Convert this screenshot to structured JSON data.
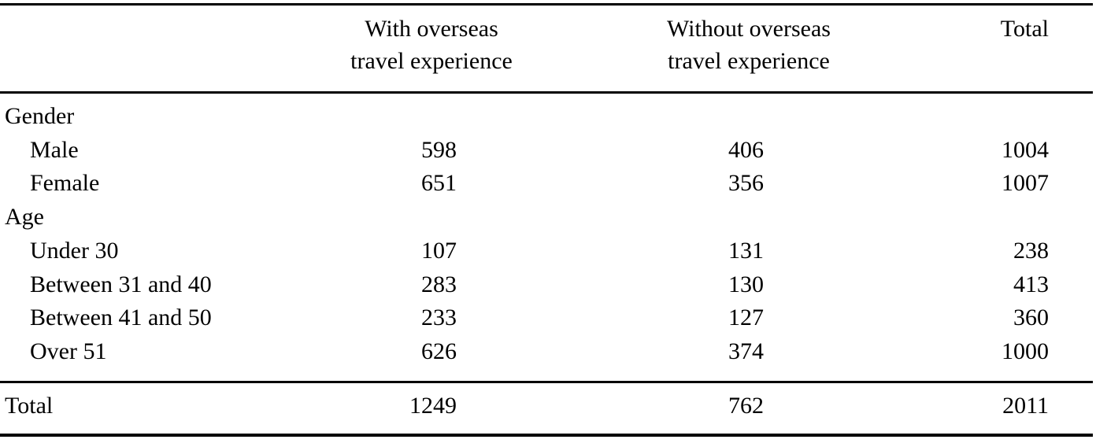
{
  "table": {
    "header": [
      [
        "With overseas",
        "travel experience"
      ],
      [
        "Without overseas",
        "travel experience"
      ],
      [
        "Total"
      ]
    ],
    "groups": [
      {
        "label": "Gender",
        "rows": [
          {
            "label": "Male",
            "values": [
              598,
              406,
              1004
            ]
          },
          {
            "label": "Female",
            "values": [
              651,
              356,
              1007
            ]
          }
        ]
      },
      {
        "label": "Age",
        "rows": [
          {
            "label": "Under 30",
            "values": [
              107,
              131,
              238
            ]
          },
          {
            "label": "Between 31 and 40",
            "values": [
              283,
              130,
              413
            ]
          },
          {
            "label": "Between 41 and 50",
            "values": [
              233,
              127,
              360
            ]
          },
          {
            "label": "Over 51",
            "values": [
              626,
              374,
              1000
            ]
          }
        ]
      }
    ],
    "total": {
      "label": "Total",
      "values": [
        1249,
        762,
        2011
      ]
    }
  }
}
